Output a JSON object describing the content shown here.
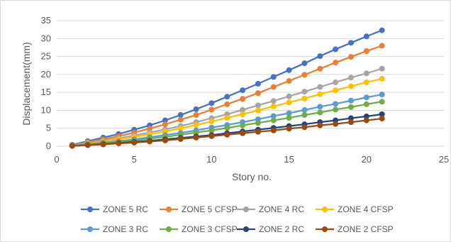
{
  "chart_data": {
    "type": "line",
    "title": "",
    "xlabel": "Story no.",
    "ylabel": "Displacement(mm)",
    "xlim": [
      0,
      25
    ],
    "ylim": [
      0,
      35
    ],
    "xticks": [
      0,
      5,
      10,
      15,
      20,
      25
    ],
    "yticks": [
      0,
      5,
      10,
      15,
      20,
      25,
      30,
      35
    ],
    "grid": "horizontal",
    "legend_position": "bottom",
    "x": [
      1,
      2,
      3,
      4,
      5,
      6,
      7,
      8,
      9,
      10,
      11,
      12,
      13,
      14,
      15,
      16,
      17,
      18,
      19,
      20,
      21
    ],
    "series": [
      {
        "name": "ZONE 5 RC",
        "color": "#4472c4",
        "values": [
          0.4,
          1.4,
          2.4,
          3.4,
          4.6,
          5.8,
          7.2,
          8.7,
          10.3,
          12.0,
          13.8,
          15.6,
          17.4,
          19.3,
          21.2,
          23.1,
          25.1,
          27.0,
          28.8,
          30.6,
          32.3
        ]
      },
      {
        "name": "ZONE 5 CFSP",
        "color": "#ed7d31",
        "values": [
          0.3,
          1.1,
          1.9,
          2.8,
          3.8,
          4.9,
          6.1,
          7.4,
          8.7,
          10.2,
          11.7,
          13.2,
          14.8,
          16.5,
          18.2,
          19.9,
          21.6,
          23.3,
          24.9,
          26.5,
          28.0
        ]
      },
      {
        "name": "ZONE 4  RC",
        "color": "#a5a5a5",
        "values": [
          0.3,
          0.9,
          1.5,
          2.2,
          3.0,
          3.8,
          4.7,
          5.6,
          6.7,
          7.8,
          8.9,
          10.1,
          11.4,
          12.6,
          13.9,
          15.2,
          16.5,
          17.8,
          19.1,
          20.3,
          21.6
        ]
      },
      {
        "name": "ZONE 4  CFSP",
        "color": "#ffc000",
        "values": [
          0.2,
          0.7,
          1.3,
          1.9,
          2.6,
          3.3,
          4.1,
          5.0,
          5.9,
          6.9,
          7.9,
          8.9,
          10.0,
          11.1,
          12.2,
          13.3,
          14.5,
          15.6,
          16.7,
          17.8,
          18.8
        ]
      },
      {
        "name": "ZONE  3  RC",
        "color": "#5b9bd5",
        "values": [
          0.2,
          0.6,
          1.0,
          1.4,
          1.9,
          2.5,
          3.1,
          3.7,
          4.4,
          5.2,
          5.9,
          6.7,
          7.5,
          8.4,
          9.2,
          10.1,
          11.0,
          11.8,
          12.7,
          13.6,
          14.4
        ]
      },
      {
        "name": "ZONE  3  CFSP",
        "color": "#70ad47",
        "values": [
          0.2,
          0.5,
          0.8,
          1.2,
          1.6,
          2.1,
          2.6,
          3.2,
          3.8,
          4.4,
          5.1,
          5.8,
          6.5,
          7.2,
          7.9,
          8.7,
          9.4,
          10.2,
          10.9,
          11.7,
          12.4
        ]
      },
      {
        "name": "ZONE  2  RC",
        "color": "#264478",
        "values": [
          0.1,
          0.3,
          0.6,
          0.9,
          1.2,
          1.5,
          1.9,
          2.3,
          2.7,
          3.1,
          3.6,
          4.1,
          4.6,
          5.1,
          5.6,
          6.1,
          6.7,
          7.2,
          7.8,
          8.3,
          8.9
        ]
      },
      {
        "name": "ZONE  2  CFSP",
        "color": "#9e480e",
        "values": [
          0.1,
          0.3,
          0.5,
          0.8,
          1.0,
          1.3,
          1.6,
          2.0,
          2.4,
          2.8,
          3.2,
          3.6,
          4.0,
          4.4,
          4.9,
          5.3,
          5.8,
          6.2,
          6.7,
          7.2,
          7.7
        ]
      }
    ]
  }
}
